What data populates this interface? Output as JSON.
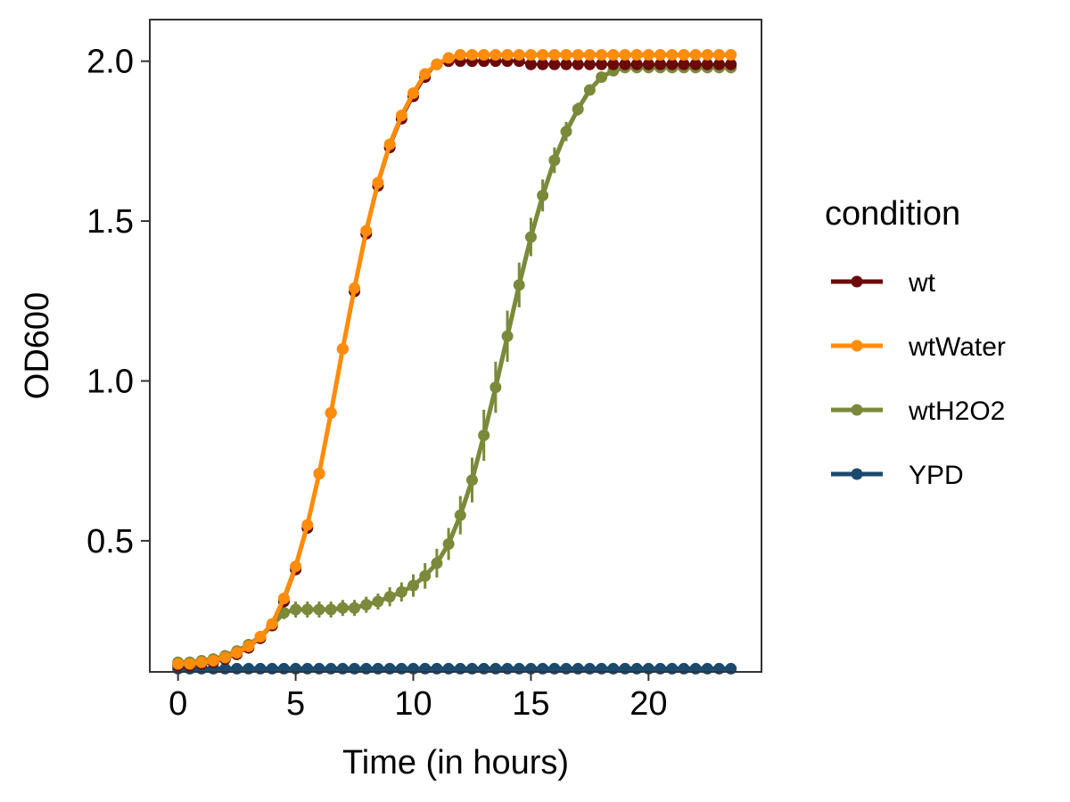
{
  "chart_data": {
    "type": "line",
    "xlabel": "Time (in hours)",
    "ylabel": "OD600",
    "xlim": [
      -1.2,
      24.8
    ],
    "ylim": [
      0.09,
      2.13
    ],
    "x_ticks": [
      0,
      5,
      10,
      15,
      20
    ],
    "x_tick_labels": [
      "0",
      "5",
      "10",
      "15",
      "20"
    ],
    "y_ticks": [
      0.5,
      1.0,
      1.5,
      2.0
    ],
    "y_tick_labels": [
      "0.5",
      "1.0",
      "1.5",
      "2.0"
    ],
    "grid": false,
    "legend": {
      "title": "condition",
      "placement": "right",
      "entries": [
        "wt",
        "wtWater",
        "wtH2O2",
        "YPD"
      ]
    },
    "x": [
      0,
      0.5,
      1,
      1.5,
      2,
      2.5,
      3,
      3.5,
      4,
      4.5,
      5,
      5.5,
      6,
      6.5,
      7,
      7.5,
      8,
      8.5,
      9,
      9.5,
      10,
      10.5,
      11,
      11.5,
      12,
      12.5,
      13,
      13.5,
      14,
      14.5,
      15,
      15.5,
      16,
      16.5,
      17,
      17.5,
      18,
      18.5,
      19,
      19.5,
      20,
      20.5,
      21,
      21.5,
      22,
      22.5,
      23,
      23.5
    ],
    "series": [
      {
        "name": "wt",
        "color": "#6b0a0a",
        "values": [
          0.11,
          0.11,
          0.115,
          0.12,
          0.13,
          0.145,
          0.165,
          0.195,
          0.235,
          0.31,
          0.41,
          0.54,
          0.71,
          0.9,
          1.1,
          1.28,
          1.46,
          1.61,
          1.73,
          1.82,
          1.89,
          1.95,
          1.99,
          2.0,
          2.0,
          2.0,
          2.0,
          2.0,
          2.0,
          2.0,
          1.99,
          1.99,
          1.99,
          1.99,
          1.99,
          1.99,
          1.99,
          1.99,
          1.99,
          1.99,
          1.99,
          1.99,
          1.99,
          1.99,
          1.99,
          1.99,
          1.99,
          1.99
        ],
        "error": [
          0,
          0,
          0,
          0,
          0,
          0,
          0,
          0,
          0,
          0,
          0,
          0,
          0,
          0,
          0,
          0,
          0,
          0,
          0,
          0,
          0,
          0,
          0,
          0,
          0,
          0,
          0,
          0,
          0,
          0,
          0,
          0,
          0,
          0,
          0,
          0,
          0,
          0,
          0,
          0,
          0,
          0,
          0,
          0,
          0,
          0,
          0,
          0
        ]
      },
      {
        "name": "wtWater",
        "color": "#ff8c0a",
        "values": [
          0.115,
          0.115,
          0.12,
          0.125,
          0.135,
          0.15,
          0.17,
          0.2,
          0.24,
          0.32,
          0.42,
          0.55,
          0.71,
          0.9,
          1.1,
          1.29,
          1.47,
          1.62,
          1.74,
          1.83,
          1.9,
          1.96,
          1.99,
          2.01,
          2.02,
          2.02,
          2.02,
          2.02,
          2.02,
          2.02,
          2.02,
          2.02,
          2.02,
          2.02,
          2.02,
          2.02,
          2.02,
          2.02,
          2.02,
          2.02,
          2.02,
          2.02,
          2.02,
          2.02,
          2.02,
          2.02,
          2.02,
          2.02
        ],
        "error": [
          0,
          0,
          0,
          0,
          0,
          0,
          0,
          0,
          0,
          0,
          0,
          0,
          0,
          0,
          0,
          0,
          0,
          0,
          0,
          0,
          0,
          0,
          0,
          0,
          0,
          0,
          0,
          0,
          0,
          0,
          0,
          0,
          0,
          0,
          0,
          0,
          0,
          0,
          0,
          0,
          0,
          0,
          0,
          0,
          0,
          0,
          0,
          0
        ]
      },
      {
        "name": "wtH2O2",
        "color": "#7a8a3a",
        "values": [
          0.12,
          0.12,
          0.125,
          0.13,
          0.14,
          0.155,
          0.175,
          0.2,
          0.235,
          0.275,
          0.285,
          0.285,
          0.285,
          0.285,
          0.29,
          0.29,
          0.3,
          0.31,
          0.325,
          0.34,
          0.36,
          0.39,
          0.43,
          0.49,
          0.58,
          0.69,
          0.83,
          0.98,
          1.14,
          1.3,
          1.45,
          1.58,
          1.69,
          1.78,
          1.85,
          1.91,
          1.95,
          1.97,
          1.98,
          1.98,
          1.98,
          1.98,
          1.98,
          1.98,
          1.98,
          1.98,
          1.98,
          1.98
        ],
        "error": [
          0,
          0,
          0,
          0,
          0,
          0,
          0,
          0,
          0,
          0.02,
          0.025,
          0.025,
          0.025,
          0.025,
          0.025,
          0.025,
          0.025,
          0.025,
          0.03,
          0.03,
          0.035,
          0.04,
          0.045,
          0.05,
          0.06,
          0.07,
          0.08,
          0.08,
          0.08,
          0.07,
          0.06,
          0.05,
          0.04,
          0.03,
          0.02,
          0.015,
          0.01,
          0.01,
          0.01,
          0.01,
          0.01,
          0.01,
          0.01,
          0.01,
          0.01,
          0.01,
          0.01,
          0.01
        ]
      },
      {
        "name": "YPD",
        "color": "#1a4a6e",
        "values": [
          0.1,
          0.1,
          0.1,
          0.1,
          0.1,
          0.1,
          0.1,
          0.1,
          0.1,
          0.1,
          0.1,
          0.1,
          0.1,
          0.1,
          0.1,
          0.1,
          0.1,
          0.1,
          0.1,
          0.1,
          0.1,
          0.1,
          0.1,
          0.1,
          0.1,
          0.1,
          0.1,
          0.1,
          0.1,
          0.1,
          0.1,
          0.1,
          0.1,
          0.1,
          0.1,
          0.1,
          0.1,
          0.1,
          0.1,
          0.1,
          0.1,
          0.1,
          0.1,
          0.1,
          0.1,
          0.1,
          0.1,
          0.1
        ],
        "error": [
          0,
          0,
          0,
          0,
          0,
          0,
          0,
          0,
          0,
          0,
          0,
          0,
          0,
          0,
          0,
          0,
          0,
          0,
          0,
          0,
          0,
          0,
          0,
          0,
          0,
          0,
          0,
          0,
          0,
          0,
          0,
          0,
          0,
          0,
          0,
          0,
          0,
          0,
          0,
          0,
          0,
          0,
          0,
          0,
          0,
          0,
          0,
          0
        ]
      }
    ]
  }
}
